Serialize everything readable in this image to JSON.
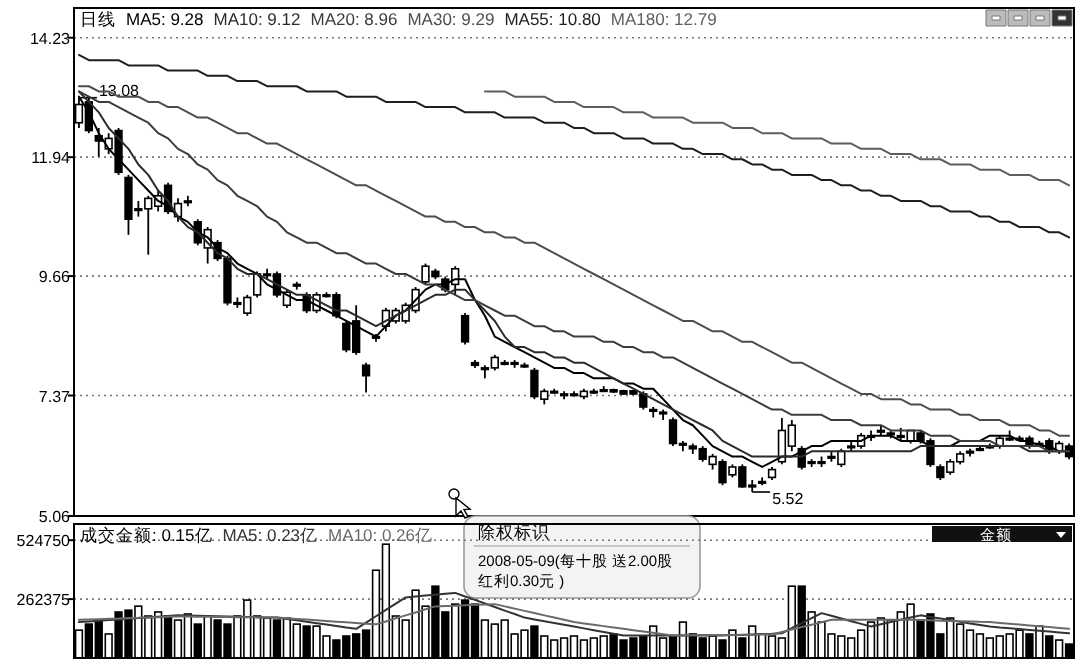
{
  "chart_data": [
    {
      "type": "candlestick",
      "title": "日线",
      "tick_labels": "y",
      "grid": "y",
      "color": "#000000",
      "categories": [
        null,
        null,
        null,
        null,
        null,
        null,
        null,
        null,
        null,
        null,
        null,
        null,
        null,
        null,
        null,
        null,
        null,
        null,
        null,
        null,
        null,
        null,
        null,
        null,
        null,
        null,
        null,
        null,
        null,
        null,
        null,
        null,
        null,
        null,
        null,
        null,
        null,
        null,
        null,
        null,
        null,
        null,
        null,
        null,
        null,
        null,
        null,
        null,
        null,
        null,
        null,
        null,
        null,
        null,
        null,
        null,
        null,
        null,
        null,
        null,
        null,
        null,
        null,
        null,
        null,
        null,
        null,
        null,
        null,
        null,
        null,
        null,
        null,
        null,
        null,
        null,
        null,
        null,
        null,
        null,
        null,
        null,
        null,
        null,
        null,
        null,
        null,
        null,
        null,
        null,
        null,
        null,
        null,
        null,
        null,
        null,
        null,
        null,
        null,
        null,
        null
      ],
      "ylim": [
        5.06,
        14.8
      ],
      "yticks": [
        14.23,
        11.94,
        9.66,
        7.37,
        5.06
      ],
      "ohlc": [
        [
          12.6,
          13.08,
          12.5,
          12.95
        ],
        [
          13.0,
          13.08,
          12.4,
          12.45
        ],
        [
          12.35,
          12.5,
          11.95,
          12.25
        ],
        [
          12.1,
          12.4,
          12.0,
          12.3
        ],
        [
          12.45,
          12.5,
          11.6,
          11.65
        ],
        [
          11.55,
          11.6,
          10.45,
          10.75
        ],
        [
          10.95,
          11.1,
          10.8,
          10.95
        ],
        [
          10.95,
          11.2,
          10.07,
          11.15
        ],
        [
          11.0,
          11.3,
          10.9,
          11.2
        ],
        [
          11.4,
          11.45,
          10.85,
          10.9
        ],
        [
          10.8,
          11.15,
          10.7,
          11.05
        ],
        [
          11.1,
          11.2,
          11.0,
          11.1
        ],
        [
          10.7,
          10.75,
          10.25,
          10.3
        ],
        [
          10.2,
          10.6,
          9.9,
          10.55
        ],
        [
          10.3,
          10.35,
          9.95,
          10.0
        ],
        [
          10.0,
          10.05,
          9.1,
          9.15
        ],
        [
          9.15,
          9.25,
          9.05,
          9.15
        ],
        [
          8.95,
          9.3,
          8.9,
          9.25
        ],
        [
          9.3,
          9.75,
          9.25,
          9.7
        ],
        [
          9.7,
          9.8,
          9.6,
          9.7
        ],
        [
          9.7,
          9.75,
          9.25,
          9.3
        ],
        [
          9.1,
          9.4,
          9.05,
          9.35
        ],
        [
          9.5,
          9.55,
          9.4,
          9.5
        ],
        [
          9.3,
          9.35,
          8.95,
          9.0
        ],
        [
          9.0,
          9.35,
          8.95,
          9.3
        ],
        [
          9.3,
          9.35,
          9.25,
          9.3
        ],
        [
          9.3,
          9.35,
          8.85,
          8.9
        ],
        [
          8.75,
          8.8,
          8.2,
          8.25
        ],
        [
          8.8,
          9.1,
          8.15,
          8.2
        ],
        [
          7.95,
          8.0,
          7.43,
          7.75
        ],
        [
          8.5,
          8.55,
          8.4,
          8.5
        ],
        [
          8.7,
          9.05,
          8.6,
          9.0
        ],
        [
          8.8,
          9.05,
          8.75,
          9.0
        ],
        [
          8.8,
          9.15,
          8.75,
          9.1
        ],
        [
          9.0,
          9.45,
          8.95,
          9.4
        ],
        [
          9.55,
          9.9,
          9.5,
          9.85
        ],
        [
          9.75,
          9.8,
          9.6,
          9.65
        ],
        [
          9.6,
          9.65,
          9.35,
          9.4
        ],
        [
          9.5,
          9.85,
          9.3,
          9.8
        ],
        [
          8.9,
          8.95,
          8.35,
          8.4
        ],
        [
          8.0,
          8.05,
          7.9,
          7.95
        ],
        [
          7.9,
          7.95,
          7.7,
          7.9
        ],
        [
          7.9,
          8.15,
          7.85,
          8.1
        ],
        [
          8.0,
          8.05,
          7.95,
          8.0
        ],
        [
          8.0,
          8.05,
          7.9,
          8.0
        ],
        [
          7.95,
          8.0,
          7.9,
          7.95
        ],
        [
          7.85,
          7.9,
          7.3,
          7.35
        ],
        [
          7.3,
          7.5,
          7.2,
          7.45
        ],
        [
          7.45,
          7.5,
          7.4,
          7.45
        ],
        [
          7.4,
          7.45,
          7.3,
          7.4
        ],
        [
          7.4,
          7.45,
          7.35,
          7.4
        ],
        [
          7.35,
          7.5,
          7.3,
          7.45
        ],
        [
          7.45,
          7.5,
          7.4,
          7.45
        ],
        [
          7.48,
          7.55,
          7.45,
          7.48
        ],
        [
          7.48,
          7.5,
          7.42,
          7.44
        ],
        [
          7.46,
          7.48,
          7.38,
          7.4
        ],
        [
          7.46,
          7.48,
          7.38,
          7.4
        ],
        [
          7.4,
          7.45,
          7.1,
          7.15
        ],
        [
          7.1,
          7.15,
          6.95,
          7.1
        ],
        [
          7.05,
          7.1,
          6.9,
          7.05
        ],
        [
          6.9,
          6.95,
          6.4,
          6.45
        ],
        [
          6.45,
          6.5,
          6.3,
          6.45
        ],
        [
          6.4,
          6.45,
          6.25,
          6.35
        ],
        [
          6.35,
          6.4,
          6.1,
          6.15
        ],
        [
          6.05,
          6.25,
          5.95,
          6.2
        ],
        [
          6.1,
          6.15,
          5.65,
          5.7
        ],
        [
          5.85,
          6.05,
          5.8,
          6.0
        ],
        [
          6.0,
          6.05,
          5.6,
          5.62
        ],
        [
          5.65,
          5.75,
          5.52,
          5.65
        ],
        [
          5.7,
          5.8,
          5.65,
          5.72
        ],
        [
          5.8,
          6.0,
          5.75,
          5.95
        ],
        [
          6.1,
          6.94,
          6.05,
          6.7
        ],
        [
          6.4,
          6.9,
          6.3,
          6.8
        ],
        [
          6.35,
          6.4,
          5.95,
          6.0
        ],
        [
          6.1,
          6.15,
          6.0,
          6.1
        ],
        [
          6.1,
          6.2,
          6.0,
          6.1
        ],
        [
          6.2,
          6.3,
          6.1,
          6.2
        ],
        [
          6.05,
          6.35,
          6.0,
          6.3
        ],
        [
          6.4,
          6.5,
          6.3,
          6.4
        ],
        [
          6.4,
          6.65,
          6.35,
          6.6
        ],
        [
          6.6,
          6.7,
          6.5,
          6.6
        ],
        [
          6.7,
          6.8,
          6.6,
          6.7
        ],
        [
          6.65,
          6.7,
          6.55,
          6.65
        ],
        [
          6.6,
          6.75,
          6.5,
          6.6
        ],
        [
          6.5,
          6.7,
          6.45,
          6.7
        ],
        [
          6.65,
          6.7,
          6.45,
          6.5
        ],
        [
          6.5,
          6.55,
          6.0,
          6.05
        ],
        [
          6.0,
          6.05,
          5.75,
          5.8
        ],
        [
          5.9,
          6.15,
          5.85,
          6.1
        ],
        [
          6.1,
          6.3,
          6.05,
          6.25
        ],
        [
          6.3,
          6.35,
          6.2,
          6.3
        ],
        [
          6.35,
          6.4,
          6.3,
          6.35
        ],
        [
          6.4,
          6.45,
          6.35,
          6.4
        ],
        [
          6.4,
          6.6,
          6.35,
          6.55
        ],
        [
          6.55,
          6.7,
          6.5,
          6.55
        ],
        [
          6.55,
          6.6,
          6.5,
          6.55
        ],
        [
          6.55,
          6.6,
          6.35,
          6.4
        ],
        [
          6.45,
          6.5,
          6.4,
          6.45
        ],
        [
          6.5,
          6.55,
          6.25,
          6.3
        ],
        [
          6.3,
          6.5,
          6.25,
          6.45
        ],
        [
          6.4,
          6.45,
          6.15,
          6.2
        ]
      ],
      "annotations": [
        "13.08",
        "5.52",
        "除权标识",
        "2008-05-09(每十股 送2.00股",
        "红利0.30元 )"
      ]
    },
    {
      "type": "line",
      "tick_labels": false,
      "ylim": [
        5.06,
        14.8
      ],
      "categories": [
        null,
        null,
        null,
        null,
        null,
        null,
        null,
        null,
        null,
        null,
        null,
        null,
        null,
        null,
        null,
        null,
        null,
        null,
        null,
        null,
        null,
        null,
        null,
        null,
        null,
        null,
        null,
        null,
        null,
        null,
        null,
        null,
        null,
        null,
        null,
        null,
        null,
        null,
        null,
        null,
        null,
        null,
        null,
        null,
        null,
        null,
        null,
        null,
        null,
        null,
        null,
        null,
        null,
        null,
        null,
        null,
        null,
        null,
        null,
        null,
        null,
        null,
        null,
        null,
        null,
        null,
        null,
        null,
        null,
        null,
        null,
        null,
        null,
        null,
        null,
        null,
        null,
        null,
        null,
        null,
        null,
        null,
        null,
        null,
        null,
        null,
        null,
        null,
        null,
        null,
        null,
        null,
        null,
        null,
        null,
        null,
        null,
        null,
        null,
        null,
        null
      ],
      "series": [
        {
          "name": "MA5: 9.28",
          "color": "#000000",
          "values": [
            13.1,
            12.8,
            12.4,
            12.1,
            11.9,
            11.7,
            11.5,
            11.3,
            11.1,
            11.0,
            10.8,
            10.7,
            10.5,
            10.4,
            10.2,
            10.1,
            9.9,
            9.8,
            9.7,
            9.5,
            9.4,
            9.3,
            9.2,
            9.2,
            9.1,
            9.0,
            8.9,
            8.8,
            8.7,
            8.6,
            8.5,
            8.7,
            8.9,
            9.0,
            9.2,
            9.4,
            9.5,
            9.5,
            9.6,
            9.6,
            9.2,
            8.9,
            8.5,
            8.4,
            8.3,
            8.2,
            8.1,
            8.0,
            7.9,
            7.9,
            7.8,
            7.8,
            7.7,
            7.7,
            7.7,
            7.6,
            7.6,
            7.5,
            7.5,
            7.3,
            7.1,
            6.9,
            6.8,
            6.6,
            6.4,
            6.3,
            6.2,
            6.2,
            6.1,
            6.0,
            6.1,
            6.2,
            6.2,
            6.3,
            6.4,
            6.4,
            6.5,
            6.5,
            6.5,
            6.5,
            6.6,
            6.6,
            6.6,
            6.5,
            6.5,
            6.5,
            6.4,
            6.4,
            6.4,
            6.5,
            6.5,
            6.5,
            6.6,
            6.6,
            6.6,
            6.5,
            6.5,
            6.4,
            6.4,
            6.3,
            6.3
          ]
        },
        {
          "name": "MA10: 9.12",
          "color": "#2b2b2b",
          "values": [
            13.2,
            13.0,
            12.8,
            12.5,
            12.3,
            12.1,
            11.8,
            11.6,
            11.3,
            11.1,
            10.8,
            10.6,
            10.5,
            10.3,
            10.1,
            10.0,
            9.8,
            9.7,
            9.7,
            9.6,
            9.5,
            9.4,
            9.3,
            9.3,
            9.2,
            9.1,
            9.0,
            9.0,
            8.9,
            8.8,
            8.7,
            8.8,
            8.9,
            9.0,
            9.1,
            9.2,
            9.3,
            9.3,
            9.4,
            9.4,
            9.2,
            9.0,
            8.8,
            8.5,
            8.3,
            8.3,
            8.2,
            8.2,
            8.1,
            8.1,
            8.0,
            8.0,
            7.9,
            7.8,
            7.7,
            7.6,
            7.5,
            7.4,
            7.3,
            7.2,
            7.1,
            7.0,
            6.9,
            6.8,
            6.7,
            6.5,
            6.4,
            6.3,
            6.2,
            6.2,
            6.2,
            6.2,
            6.2,
            6.2,
            6.3,
            6.3,
            6.3,
            6.3,
            6.3,
            6.3,
            6.3,
            6.3,
            6.3,
            6.3,
            6.3,
            6.4,
            6.4,
            6.4,
            6.4,
            6.4,
            6.4,
            6.4,
            6.4,
            6.4,
            6.4,
            6.4,
            6.3,
            6.3,
            6.3,
            6.3,
            6.3
          ]
        },
        {
          "name": "MA20: 8.96",
          "color": "#3c3c3c",
          "values": [
            13.2,
            13.1,
            13.0,
            13.0,
            12.9,
            12.8,
            12.7,
            12.6,
            12.4,
            12.3,
            12.1,
            12.0,
            11.8,
            11.7,
            11.5,
            11.4,
            11.2,
            11.1,
            11.0,
            10.8,
            10.7,
            10.5,
            10.4,
            10.3,
            10.3,
            10.2,
            10.1,
            10.1,
            10.0,
            9.9,
            9.9,
            9.8,
            9.7,
            9.7,
            9.6,
            9.5,
            9.5,
            9.4,
            9.3,
            9.2,
            9.2,
            9.1,
            9.0,
            8.9,
            8.9,
            8.8,
            8.7,
            8.7,
            8.6,
            8.6,
            8.5,
            8.5,
            8.5,
            8.4,
            8.4,
            8.3,
            8.3,
            8.2,
            8.2,
            8.1,
            8.1,
            8.0,
            7.9,
            7.8,
            7.7,
            7.6,
            7.5,
            7.4,
            7.3,
            7.2,
            7.1,
            7.1,
            7.0,
            7.0,
            7.0,
            7.0,
            6.9,
            6.9,
            6.9,
            6.8,
            6.8,
            6.8,
            6.7,
            6.7,
            6.7,
            6.7,
            6.6,
            6.6,
            6.6,
            6.5,
            6.5,
            6.5,
            6.5,
            6.4,
            6.4,
            6.4,
            6.4,
            6.4,
            6.3,
            6.3,
            6.3
          ]
        },
        {
          "name": "MA30: 9.29",
          "color": "#4d4d4d",
          "values": [
            13.3,
            13.3,
            13.2,
            13.2,
            13.1,
            13.1,
            13.1,
            13.0,
            13.0,
            12.9,
            12.9,
            12.8,
            12.7,
            12.7,
            12.6,
            12.5,
            12.4,
            12.4,
            12.3,
            12.2,
            12.2,
            12.1,
            12.0,
            11.9,
            11.8,
            11.7,
            11.6,
            11.5,
            11.4,
            11.4,
            11.3,
            11.2,
            11.1,
            11.0,
            10.9,
            10.8,
            10.8,
            10.7,
            10.7,
            10.6,
            10.6,
            10.5,
            10.5,
            10.4,
            10.4,
            10.3,
            10.3,
            10.2,
            10.1,
            10.0,
            9.9,
            9.8,
            9.7,
            9.6,
            9.5,
            9.4,
            9.3,
            9.2,
            9.1,
            9.0,
            8.9,
            8.8,
            8.8,
            8.7,
            8.6,
            8.6,
            8.5,
            8.4,
            8.4,
            8.3,
            8.2,
            8.1,
            8.0,
            8.0,
            7.9,
            7.8,
            7.7,
            7.6,
            7.5,
            7.4,
            7.4,
            7.3,
            7.3,
            7.3,
            7.2,
            7.2,
            7.1,
            7.1,
            7.1,
            7.0,
            7.0,
            6.9,
            6.9,
            6.9,
            6.8,
            6.8,
            6.8,
            6.7,
            6.7,
            6.6,
            6.6
          ]
        },
        {
          "name": "MA55: 10.80",
          "color": "#1f1f1f",
          "values": [
            13.9,
            13.8,
            13.8,
            13.8,
            13.8,
            13.7,
            13.7,
            13.7,
            13.7,
            13.6,
            13.6,
            13.6,
            13.6,
            13.5,
            13.5,
            13.5,
            13.4,
            13.4,
            13.4,
            13.3,
            13.3,
            13.3,
            13.3,
            13.2,
            13.2,
            13.2,
            13.2,
            13.1,
            13.1,
            13.1,
            13.1,
            13.0,
            13.0,
            13.0,
            13.0,
            12.9,
            12.9,
            12.9,
            12.9,
            12.8,
            12.8,
            12.8,
            12.8,
            12.7,
            12.7,
            12.7,
            12.7,
            12.6,
            12.6,
            12.6,
            12.5,
            12.5,
            12.4,
            12.4,
            12.4,
            12.3,
            12.3,
            12.3,
            12.2,
            12.2,
            12.2,
            12.1,
            12.1,
            12.0,
            12.0,
            12.0,
            11.9,
            11.9,
            11.8,
            11.8,
            11.7,
            11.7,
            11.6,
            11.6,
            11.6,
            11.5,
            11.5,
            11.4,
            11.4,
            11.3,
            11.3,
            11.2,
            11.2,
            11.1,
            11.1,
            11.1,
            11.0,
            11.0,
            10.9,
            10.9,
            10.9,
            10.8,
            10.8,
            10.7,
            10.7,
            10.6,
            10.6,
            10.6,
            10.5,
            10.5,
            10.4
          ]
        },
        {
          "name": "MA180: 12.79",
          "color": "#5e5e5e",
          "values": [
            null,
            null,
            null,
            null,
            null,
            null,
            null,
            null,
            null,
            null,
            null,
            null,
            null,
            null,
            null,
            null,
            null,
            null,
            null,
            null,
            null,
            null,
            null,
            null,
            null,
            null,
            null,
            null,
            null,
            null,
            null,
            null,
            null,
            null,
            null,
            null,
            null,
            null,
            null,
            null,
            null,
            13.2,
            13.2,
            13.2,
            13.1,
            13.1,
            13.1,
            13.1,
            13.0,
            13.0,
            13.0,
            12.9,
            12.9,
            12.9,
            12.9,
            12.8,
            12.8,
            12.8,
            12.7,
            12.7,
            12.7,
            12.7,
            12.6,
            12.6,
            12.6,
            12.6,
            12.5,
            12.5,
            12.5,
            12.4,
            12.4,
            12.4,
            12.3,
            12.3,
            12.3,
            12.3,
            12.2,
            12.2,
            12.2,
            12.1,
            12.1,
            12.1,
            12.0,
            12.0,
            12.0,
            11.9,
            11.9,
            11.9,
            11.8,
            11.8,
            11.8,
            11.7,
            11.7,
            11.7,
            11.6,
            11.6,
            11.6,
            11.5,
            11.5,
            11.5,
            11.4
          ]
        }
      ]
    },
    {
      "type": "bar",
      "title": "成交金额: 0.15亿",
      "tick_labels": "y",
      "grid": "y",
      "categories": [
        null,
        null,
        null,
        null,
        null,
        null,
        null,
        null,
        null,
        null,
        null,
        null,
        null,
        null,
        null,
        null,
        null,
        null,
        null,
        null,
        null,
        null,
        null,
        null,
        null,
        null,
        null,
        null,
        null,
        null,
        null,
        null,
        null,
        null,
        null,
        null,
        null,
        null,
        null,
        null,
        null,
        null,
        null,
        null,
        null,
        null,
        null,
        null,
        null,
        null,
        null,
        null,
        null,
        null,
        null,
        null,
        null,
        null,
        null,
        null,
        null,
        null,
        null,
        null,
        null,
        null,
        null,
        null,
        null,
        null,
        null,
        null,
        null,
        null,
        null,
        null,
        null,
        null,
        null,
        null,
        null,
        null,
        null,
        null,
        null,
        null,
        null,
        null,
        null,
        null,
        null,
        null,
        null,
        null,
        null,
        null,
        null,
        null,
        null,
        null,
        null
      ],
      "ylim": [
        0,
        597000
      ],
      "yticks": [
        524750,
        262375
      ],
      "values": [
        124000,
        151000,
        169000,
        107000,
        205000,
        213000,
        231000,
        187000,
        205000,
        187000,
        169000,
        196000,
        151000,
        187000,
        169000,
        151000,
        187000,
        258000,
        187000,
        178000,
        169000,
        178000,
        151000,
        142000,
        142000,
        98000,
        80000,
        98000,
        107000,
        124000,
        391000,
        507000,
        187000,
        169000,
        302000,
        231000,
        320000,
        205000,
        240000,
        258000,
        240000,
        169000,
        151000,
        169000,
        107000,
        124000,
        142000,
        98000,
        80000,
        89000,
        98000,
        80000,
        89000,
        98000,
        107000,
        80000,
        89000,
        98000,
        142000,
        89000,
        98000,
        160000,
        107000,
        89000,
        98000,
        80000,
        124000,
        89000,
        142000,
        107000,
        98000,
        89000,
        320000,
        320000,
        205000,
        160000,
        107000,
        98000,
        89000,
        124000,
        160000,
        178000,
        169000,
        205000,
        240000,
        169000,
        196000,
        107000,
        178000,
        151000,
        124000,
        107000,
        89000,
        98000,
        107000,
        124000,
        107000,
        142000,
        98000,
        80000,
        62000
      ],
      "colors": [
        "#ffffff",
        "#000000",
        "#000000",
        "#ffffff",
        "#000000",
        "#000000",
        "#ffffff",
        "#ffffff",
        "#ffffff",
        "#000000",
        "#ffffff",
        "#ffffff",
        "#000000",
        "#ffffff",
        "#000000",
        "#000000",
        "#ffffff",
        "#ffffff",
        "#ffffff",
        "#ffffff",
        "#000000",
        "#ffffff",
        "#ffffff",
        "#000000",
        "#ffffff",
        "#ffffff",
        "#000000",
        "#000000",
        "#000000",
        "#000000",
        "#ffffff",
        "#ffffff",
        "#ffffff",
        "#ffffff",
        "#ffffff",
        "#ffffff",
        "#000000",
        "#000000",
        "#ffffff",
        "#000000",
        "#000000",
        "#ffffff",
        "#ffffff",
        "#ffffff",
        "#ffffff",
        "#ffffff",
        "#000000",
        "#ffffff",
        "#ffffff",
        "#ffffff",
        "#ffffff",
        "#ffffff",
        "#ffffff",
        "#ffffff",
        "#000000",
        "#000000",
        "#000000",
        "#000000",
        "#ffffff",
        "#ffffff",
        "#000000",
        "#ffffff",
        "#000000",
        "#000000",
        "#ffffff",
        "#000000",
        "#ffffff",
        "#000000",
        "#ffffff",
        "#ffffff",
        "#ffffff",
        "#ffffff",
        "#ffffff",
        "#000000",
        "#ffffff",
        "#ffffff",
        "#ffffff",
        "#ffffff",
        "#ffffff",
        "#ffffff",
        "#ffffff",
        "#ffffff",
        "#ffffff",
        "#ffffff",
        "#ffffff",
        "#000000",
        "#000000",
        "#000000",
        "#ffffff",
        "#ffffff",
        "#ffffff",
        "#ffffff",
        "#ffffff",
        "#ffffff",
        "#ffffff",
        "#ffffff",
        "#000000",
        "#ffffff",
        "#000000",
        "#ffffff",
        "#000000"
      ],
      "annotations": [
        "金额"
      ]
    },
    {
      "type": "line",
      "tick_labels": false,
      "ylim": [
        0,
        597000
      ],
      "categories": [
        null,
        null,
        null,
        null,
        null,
        null,
        null,
        null,
        null,
        null,
        null,
        null,
        null,
        null,
        null,
        null,
        null,
        null,
        null,
        null,
        null,
        null,
        null,
        null,
        null,
        null,
        null,
        null,
        null,
        null,
        null,
        null,
        null,
        null,
        null,
        null,
        null,
        null,
        null,
        null,
        null,
        null,
        null,
        null,
        null,
        null,
        null,
        null,
        null,
        null,
        null,
        null,
        null,
        null,
        null,
        null,
        null,
        null,
        null,
        null,
        null,
        null,
        null,
        null,
        null,
        null,
        null,
        null,
        null,
        null,
        null,
        null,
        null,
        null,
        null,
        null,
        null,
        null,
        null,
        null,
        null,
        null,
        null,
        null,
        null,
        null,
        null,
        null,
        null,
        null,
        null,
        null,
        null,
        null,
        null,
        null,
        null,
        null,
        null,
        null,
        null
      ],
      "series": [
        {
          "name": "MA5: 0.23亿",
          "color": "#333333",
          "values": [
            160000,
            163000,
            166000,
            169000,
            172000,
            175000,
            178000,
            181000,
            184000,
            187000,
            190000,
            189000,
            188000,
            187000,
            186000,
            185000,
            184000,
            183000,
            182000,
            181000,
            180000,
            174000,
            168000,
            161000,
            155000,
            149000,
            143000,
            136000,
            130000,
            158000,
            186000,
            214000,
            242000,
            270000,
            274000,
            278000,
            282000,
            286000,
            290000,
            274000,
            259000,
            243000,
            227000,
            211000,
            196000,
            180000,
            172000,
            164000,
            156000,
            148000,
            140000,
            132000,
            124000,
            116000,
            108000,
            100000,
            100000,
            100000,
            100000,
            100000,
            100000,
            100000,
            100000,
            100000,
            100000,
            100000,
            102000,
            103000,
            105000,
            107000,
            108000,
            110000,
            133000,
            155000,
            178000,
            200000,
            188000,
            176000,
            164000,
            152000,
            140000,
            150000,
            160000,
            170000,
            180000,
            190000,
            183000,
            176000,
            169000,
            161000,
            154000,
            147000,
            140000,
            136000,
            133000,
            129000,
            125000,
            121000,
            118000,
            114000,
            110000
          ]
        },
        {
          "name": "MA10: 0.26亿",
          "color": "#6a6a6a",
          "values": [
            170000,
            172000,
            173000,
            175000,
            176000,
            178000,
            179000,
            181000,
            182000,
            184000,
            185000,
            185000,
            184000,
            184000,
            183000,
            183000,
            182000,
            182000,
            181000,
            181000,
            180000,
            177000,
            174000,
            171000,
            168000,
            165000,
            162000,
            159000,
            156000,
            153000,
            150000,
            163000,
            177000,
            190000,
            203000,
            217000,
            230000,
            232000,
            233000,
            235000,
            237000,
            238000,
            240000,
            230000,
            220000,
            210000,
            200000,
            190000,
            180000,
            170000,
            160000,
            154000,
            148000,
            142000,
            136000,
            130000,
            124000,
            118000,
            112000,
            106000,
            100000,
            101000,
            101000,
            102000,
            102000,
            103000,
            103000,
            104000,
            104000,
            105000,
            105000,
            116000,
            127000,
            138000,
            148000,
            159000,
            170000,
            170000,
            170000,
            170000,
            170000,
            170000,
            170000,
            170000,
            170000,
            169000,
            168000,
            166000,
            165000,
            164000,
            163000,
            161000,
            160000,
            156000,
            153000,
            149000,
            145000,
            141000,
            138000,
            134000,
            130000
          ]
        }
      ]
    }
  ]
}
